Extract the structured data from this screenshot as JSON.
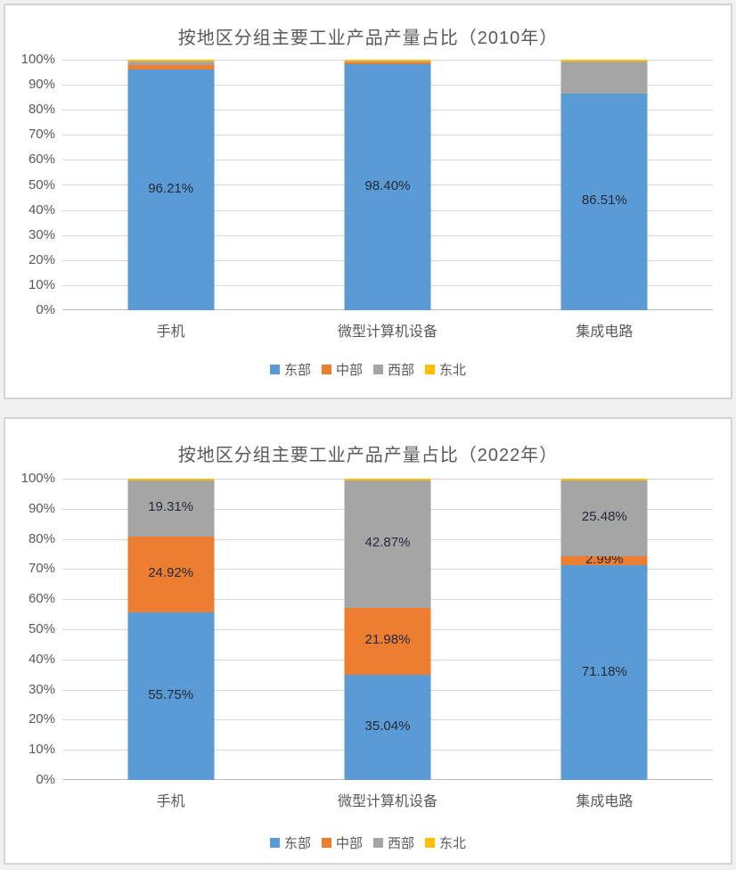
{
  "chart_data": [
    {
      "type": "bar",
      "stacked": true,
      "percent_stacked": true,
      "title": "按地区分组主要工业产品产量占比（2010年）",
      "categories": [
        "手机",
        "微型计算机设备",
        "集成电路"
      ],
      "series": [
        {
          "name": "东部",
          "color": "#5B9BD5",
          "values": [
            96.21,
            98.4,
            86.51
          ],
          "data_labels": [
            "96.21%",
            "98.40%",
            "86.51%"
          ]
        },
        {
          "name": "中部",
          "color": "#ED7D31",
          "values": [
            1.8,
            0.45,
            0.0
          ],
          "data_labels": [
            null,
            null,
            null
          ]
        },
        {
          "name": "西部",
          "color": "#A5A5A5",
          "values": [
            1.5,
            0.6,
            13.09
          ],
          "data_labels": [
            null,
            null,
            null
          ]
        },
        {
          "name": "东北",
          "color": "#FFC000",
          "values": [
            0.49,
            0.55,
            0.4
          ],
          "data_labels": [
            null,
            null,
            null
          ]
        }
      ],
      "ylabel": "",
      "xlabel": "",
      "ylim": [
        0,
        100
      ],
      "yticks": [
        "0%",
        "10%",
        "20%",
        "30%",
        "40%",
        "50%",
        "60%",
        "70%",
        "80%",
        "90%",
        "100%"
      ],
      "grid": true,
      "legend_position": "bottom"
    },
    {
      "type": "bar",
      "stacked": true,
      "percent_stacked": true,
      "title": "按地区分组主要工业产品产量占比（2022年）",
      "categories": [
        "手机",
        "微型计算机设备",
        "集成电路"
      ],
      "series": [
        {
          "name": "东部",
          "color": "#5B9BD5",
          "values": [
            55.75,
            35.04,
            71.18
          ],
          "data_labels": [
            "55.75%",
            "35.04%",
            "71.18%"
          ]
        },
        {
          "name": "中部",
          "color": "#ED7D31",
          "values": [
            24.92,
            21.98,
            2.99
          ],
          "data_labels": [
            "24.92%",
            "21.98%",
            "2.99%"
          ]
        },
        {
          "name": "西部",
          "color": "#A5A5A5",
          "values": [
            19.31,
            42.87,
            25.48
          ],
          "data_labels": [
            "19.31%",
            "42.87%",
            "25.48%"
          ]
        },
        {
          "name": "东北",
          "color": "#FFC000",
          "values": [
            0.02,
            0.11,
            0.35
          ],
          "data_labels": [
            null,
            null,
            null
          ]
        }
      ],
      "ylabel": "",
      "xlabel": "",
      "ylim": [
        0,
        100
      ],
      "yticks": [
        "0%",
        "10%",
        "20%",
        "30%",
        "40%",
        "50%",
        "60%",
        "70%",
        "80%",
        "90%",
        "100%"
      ],
      "grid": true,
      "legend_position": "bottom"
    }
  ],
  "style": {
    "title_color": "#595959",
    "tick_color": "#595959",
    "gridline_color": "#d9d9d9",
    "axis_line_color": "#bfbfbf",
    "data_label_color": "#212a3a",
    "panel_background": "#ffffff",
    "panel_border": "#d4d4d4",
    "page_background": "#f1f1f1"
  }
}
